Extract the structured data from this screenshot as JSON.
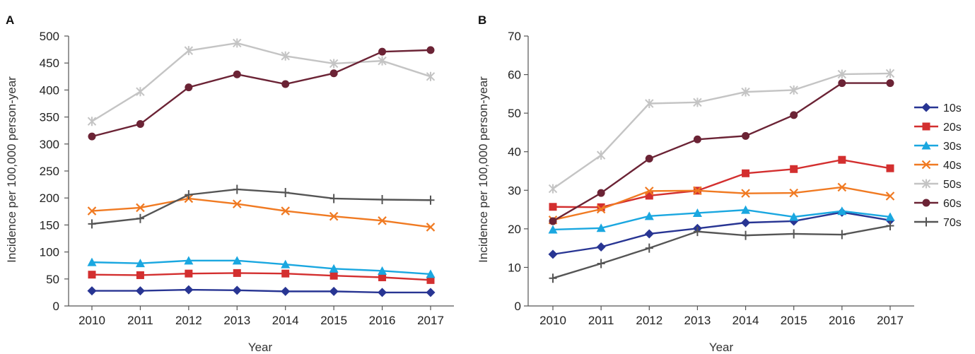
{
  "chart_data": [
    {
      "panel": "A",
      "type": "line",
      "xlabel": "Year",
      "ylabel": "Incidence per 100,000 person-year",
      "ylim": [
        0,
        500
      ],
      "yticks": [
        0,
        50,
        100,
        150,
        200,
        250,
        300,
        350,
        400,
        450,
        500
      ],
      "categories": [
        "2010",
        "2011",
        "2012",
        "2013",
        "2014",
        "2015",
        "2016",
        "2017"
      ],
      "grid": false,
      "series": [
        {
          "name": "10s",
          "values": [
            28,
            28,
            30,
            29,
            27,
            27,
            25,
            25
          ]
        },
        {
          "name": "20s",
          "values": [
            58,
            57,
            60,
            61,
            60,
            56,
            53,
            48
          ]
        },
        {
          "name": "30s",
          "values": [
            81,
            79,
            84,
            84,
            77,
            69,
            65,
            59
          ]
        },
        {
          "name": "40s",
          "values": [
            176,
            182,
            199,
            189,
            176,
            166,
            158,
            146
          ]
        },
        {
          "name": "50s",
          "values": [
            342,
            397,
            473,
            487,
            463,
            449,
            454,
            425
          ]
        },
        {
          "name": "60s",
          "values": [
            314,
            337,
            405,
            429,
            411,
            431,
            471,
            474
          ]
        },
        {
          "name": "70s",
          "values": [
            152,
            162,
            206,
            216,
            210,
            199,
            197,
            196
          ]
        }
      ]
    },
    {
      "panel": "B",
      "type": "line",
      "xlabel": "Year",
      "ylabel": "Incidence per 100,000 person-year",
      "ylim": [
        0,
        70
      ],
      "yticks": [
        0,
        10,
        20,
        30,
        40,
        50,
        60,
        70
      ],
      "categories": [
        "2010",
        "2011",
        "2012",
        "2013",
        "2014",
        "2015",
        "2016",
        "2017"
      ],
      "grid": false,
      "legend_position": "right",
      "series": [
        {
          "name": "10s",
          "values": [
            13.4,
            15.3,
            18.7,
            20.1,
            21.6,
            22.0,
            24.3,
            22.2
          ]
        },
        {
          "name": "20s",
          "values": [
            25.7,
            25.6,
            28.6,
            29.9,
            34.4,
            35.5,
            37.9,
            35.7
          ]
        },
        {
          "name": "30s",
          "values": [
            19.8,
            20.2,
            23.3,
            24.1,
            24.9,
            23.1,
            24.6,
            23.1
          ]
        },
        {
          "name": "40s",
          "values": [
            22.3,
            25.1,
            29.8,
            29.9,
            29.2,
            29.3,
            30.8,
            28.5
          ]
        },
        {
          "name": "50s",
          "values": [
            30.4,
            39.1,
            52.5,
            52.8,
            55.5,
            56.0,
            60.1,
            60.3
          ]
        },
        {
          "name": "60s",
          "values": [
            22.0,
            29.3,
            38.2,
            43.2,
            44.1,
            49.5,
            57.8,
            57.8
          ]
        },
        {
          "name": "70s",
          "values": [
            7.2,
            11.0,
            15.0,
            19.3,
            18.3,
            18.7,
            18.5,
            20.8
          ]
        }
      ]
    }
  ],
  "series_style": {
    "10s": {
      "color": "#283593",
      "marker": "diamond"
    },
    "20s": {
      "color": "#d32f2f",
      "marker": "square"
    },
    "30s": {
      "color": "#1aa7e0",
      "marker": "triangle"
    },
    "40s": {
      "color": "#f07a22",
      "marker": "x"
    },
    "50s": {
      "color": "#c4c4c4",
      "marker": "asterisk"
    },
    "60s": {
      "color": "#6b2335",
      "marker": "circle"
    },
    "70s": {
      "color": "#555555",
      "marker": "plus"
    }
  },
  "legend": {
    "entries": [
      "10s",
      "20s",
      "30s",
      "40s",
      "50s",
      "60s",
      "70s"
    ]
  }
}
